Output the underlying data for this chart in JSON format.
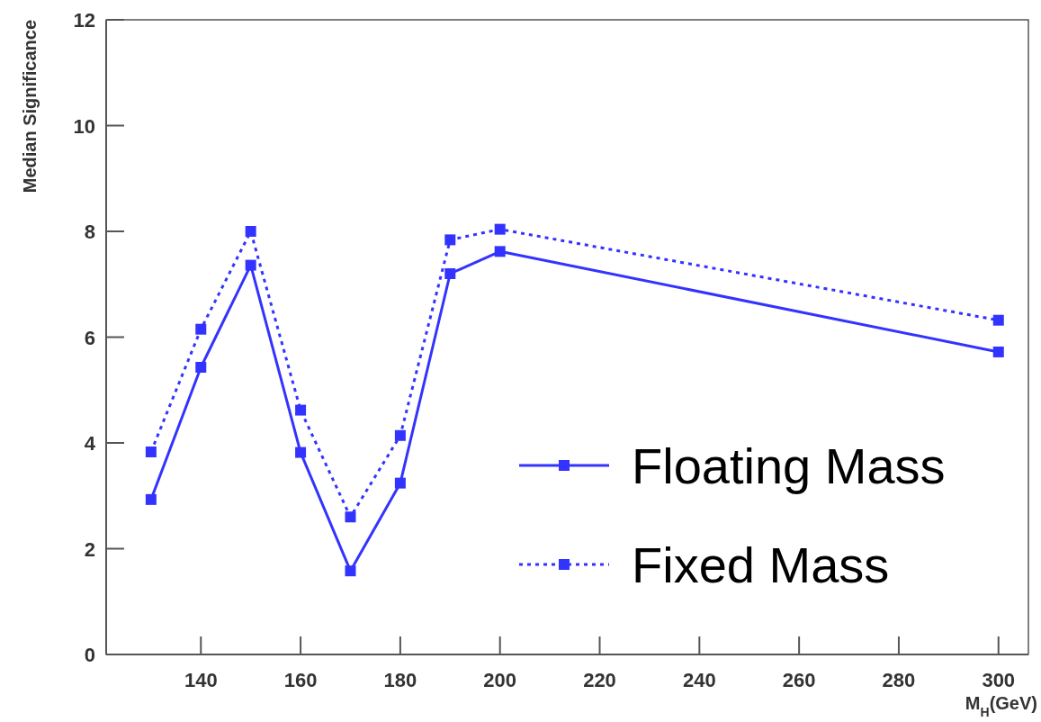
{
  "chart_data": {
    "type": "line",
    "xlabel": "M$_{H}$(GeV)",
    "ylabel": "Median Significance",
    "x": [
      130,
      140,
      150,
      160,
      170,
      180,
      190,
      200,
      300
    ],
    "series": [
      {
        "name": "Floating Mass",
        "color": "#3333ff",
        "line_style": "solid",
        "values": [
          2.93,
          5.43,
          7.36,
          3.82,
          1.58,
          3.24,
          7.2,
          7.62,
          5.72
        ]
      },
      {
        "name": "Fixed Mass",
        "color": "#3333ff",
        "line_style": "dotted",
        "values": [
          3.83,
          6.15,
          8.0,
          4.62,
          2.6,
          4.14,
          7.84,
          8.04,
          6.32
        ]
      }
    ],
    "marker": "square",
    "xlim": [
      121,
      306
    ],
    "xticks": [
      140,
      160,
      180,
      200,
      220,
      240,
      260,
      280,
      300
    ],
    "ylim": [
      0,
      12
    ],
    "yticks": [
      0,
      2,
      4,
      6,
      8,
      10,
      12
    ],
    "grid": false,
    "legend": "bottom right"
  }
}
